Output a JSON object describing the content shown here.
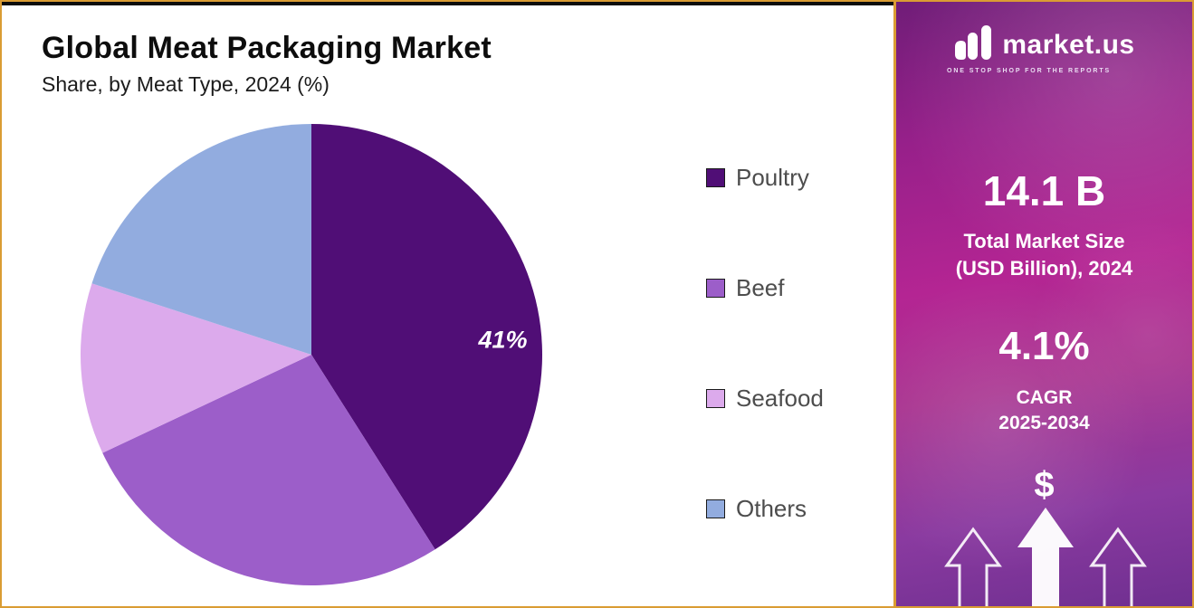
{
  "header": {
    "title": "Global Meat Packaging Market",
    "subtitle": "Share, by Meat Type, 2024 (%)"
  },
  "chart_data": {
    "type": "pie",
    "title": "Global Meat Packaging Market",
    "subtitle": "Share, by Meat Type, 2024 (%)",
    "unit": "%",
    "categories": [
      "Poultry",
      "Beef",
      "Seafood",
      "Others"
    ],
    "values": [
      41,
      27,
      12,
      20
    ],
    "colors": [
      "#500E76",
      "#9C5EC9",
      "#DCAAEC",
      "#92ACDF"
    ],
    "start_angle_deg": 0,
    "direction": "clockwise",
    "legend_position": "right",
    "data_labels": [
      {
        "slice_index": 0,
        "text": "41%",
        "angle_deg": 88,
        "radius_frac": 0.83
      }
    ]
  },
  "sidebar": {
    "brand": {
      "name": "market.us",
      "tagline": "ONE STOP SHOP FOR THE REPORTS"
    },
    "market_size": {
      "value": "14.1 B",
      "label_line1": "Total Market Size",
      "label_line2": "(USD Billion), 2024"
    },
    "cagr": {
      "value": "4.1%",
      "label_line1": "CAGR",
      "label_line2": "2025-2034"
    },
    "dollar_symbol": "$"
  },
  "theme": {
    "accent_border": "#DA9C33",
    "legend_text_color": "#4D4D4D"
  }
}
